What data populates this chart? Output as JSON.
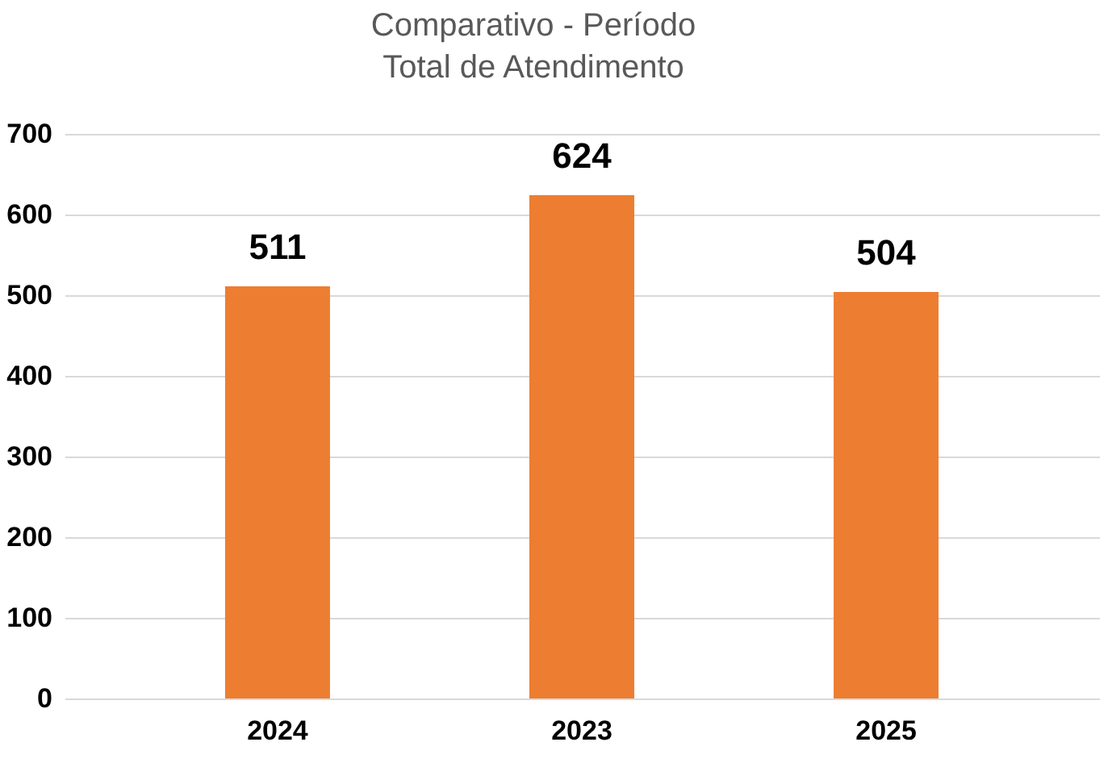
{
  "chart_data": {
    "type": "bar",
    "title": "Comparativo - Período\n Total de Atendimento",
    "categories": [
      "2024",
      "2023",
      "2025"
    ],
    "values": [
      511,
      624,
      504
    ],
    "color": "#ed7d31",
    "ylim": [
      0,
      700
    ],
    "yticks": [
      0,
      100,
      200,
      300,
      400,
      500,
      600,
      700
    ],
    "grid": "y",
    "data_labels": true
  }
}
